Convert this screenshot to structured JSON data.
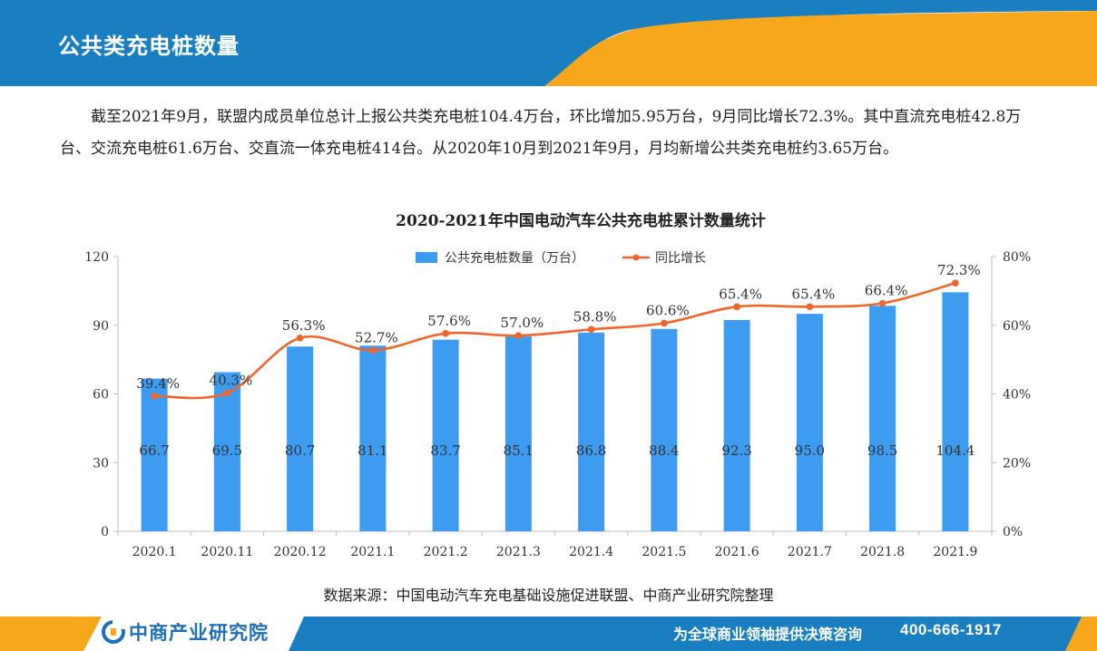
{
  "header": {
    "title": "公共类充电桩数量",
    "colors": {
      "blue": "#1a7fc1",
      "orange": "#f7a71c"
    }
  },
  "intro": {
    "text": "截至2021年9月，联盟内成员单位总计上报公共类充电桩104.4万台，环比增加5.95万台，9月同比增长72.3%。其中直流充电桩42.8万台、交流充电桩61.6万台、交直流一体充电桩414台。从2020年10月到2021年9月，月均新增公共类充电桩约3.65万台。"
  },
  "chart_data": {
    "type": "bar",
    "title": "2020-2021年中国电动汽车公共充电桩累计数量统计",
    "categories": [
      "2020.1",
      "2020.11",
      "2020.12",
      "2021.1",
      "2021.2",
      "2021.3",
      "2021.4",
      "2021.5",
      "2021.6",
      "2021.7",
      "2021.8",
      "2021.9"
    ],
    "series": [
      {
        "name": "公共充电桩数量（万台）",
        "type": "bar",
        "axis": "left",
        "color": "#3d9bf0",
        "values": [
          66.7,
          69.5,
          80.7,
          81.1,
          83.7,
          85.1,
          86.8,
          88.4,
          92.3,
          95.0,
          98.5,
          104.4
        ],
        "labels": [
          "66.7",
          "69.5",
          "80.7",
          "81.1",
          "83.7",
          "85.1",
          "86.8",
          "88.4",
          "92.3",
          "95.0",
          "98.5",
          "104.4"
        ]
      },
      {
        "name": "同比增长",
        "type": "line",
        "axis": "right",
        "color": "#f0662a",
        "values": [
          39.4,
          40.3,
          56.3,
          52.7,
          57.6,
          57.0,
          58.8,
          60.6,
          65.4,
          65.4,
          66.4,
          72.3
        ],
        "labels": [
          "39.4%",
          "40.3%",
          "56.3%",
          "52.7%",
          "57.6%",
          "57.0%",
          "58.8%",
          "60.6%",
          "65.4%",
          "65.4%",
          "66.4%",
          "72.3%"
        ]
      }
    ],
    "yleft": {
      "min": 0,
      "max": 120,
      "ticks": [
        "0",
        "30",
        "60",
        "90",
        "120"
      ],
      "tick_values": [
        0,
        30,
        60,
        90,
        120
      ]
    },
    "yright": {
      "min": 0,
      "max": 80,
      "ticks": [
        "0%",
        "20%",
        "40%",
        "60%",
        "80%"
      ],
      "tick_values": [
        0,
        20,
        40,
        60,
        80
      ]
    },
    "legend_position": "top-center",
    "grid": false
  },
  "source": {
    "text": "数据来源：中国电动汽车充电基础设施促进联盟、中商产业研究院整理"
  },
  "footer": {
    "brand": "中商产业研究院",
    "slogan": "为全球商业领袖提供决策咨询",
    "phone": "400-666-1917"
  }
}
